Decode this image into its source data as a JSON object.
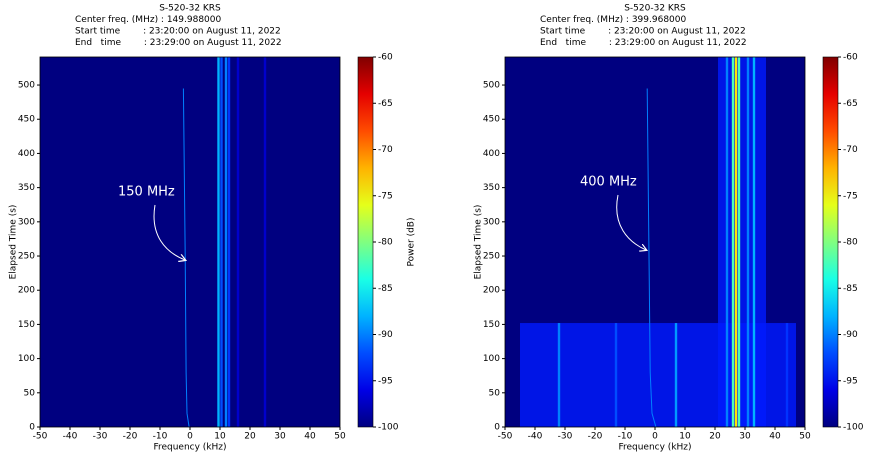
{
  "chart_data": [
    {
      "type": "spectrogram",
      "title": [
        "S-520-32 KRS",
        "Center freq. (MHz) : 149.988000",
        "Start time        : 23:20:00 on August 11, 2022",
        "End   time        : 23:29:00 on August 11, 2022"
      ],
      "xlabel": "Frequency (kHz)",
      "ylabel": "Elapsed Time (s)",
      "xlim": [
        -50,
        50
      ],
      "xticks": [
        -50,
        -40,
        -30,
        -20,
        -10,
        0,
        10,
        20,
        30,
        40,
        50
      ],
      "ylim": [
        0,
        541
      ],
      "yticks": [
        0,
        50,
        100,
        150,
        200,
        250,
        300,
        350,
        400,
        450,
        500
      ],
      "colormap": "jet",
      "clim": [
        -100,
        -60
      ],
      "cticks": [
        -100,
        -95,
        -90,
        -85,
        -80,
        -75,
        -70,
        -65,
        -60
      ],
      "colorbar_label": "Power (dB)",
      "annotation": "150 MHz",
      "regions": [],
      "signals": [
        {
          "frequency": 9.5,
          "power": -88
        },
        {
          "frequency": 10.5,
          "power": -92
        },
        {
          "frequency": 12,
          "power": -90
        },
        {
          "frequency": 13,
          "power": -93
        },
        {
          "frequency": 16,
          "power": -97
        },
        {
          "frequency": 25,
          "power": -97
        }
      ],
      "trace": {
        "x": [
          -0.3,
          -1.0,
          -1.3,
          -1.6,
          -2.2
        ],
        "y": [
          0,
          20,
          80,
          250,
          495
        ],
        "power": -90
      }
    },
    {
      "type": "spectrogram",
      "title": [
        "S-520-32 KRS",
        "Center freq. (MHz) : 399.968000",
        "Start time        : 23:20:00 on August 11, 2022",
        "End   time        : 23:29:00 on August 11, 2022"
      ],
      "xlabel": "Frequency (kHz)",
      "ylabel": "Elapsed Time (s)",
      "xlim": [
        -50,
        50
      ],
      "xticks": [
        -50,
        -40,
        -30,
        -20,
        -10,
        0,
        10,
        20,
        30,
        40,
        50
      ],
      "ylim": [
        0,
        541
      ],
      "yticks": [
        0,
        50,
        100,
        150,
        200,
        250,
        300,
        350,
        400,
        450,
        500
      ],
      "colormap": "jet",
      "clim": [
        -100,
        -60
      ],
      "cticks": [
        -100,
        -95,
        -90,
        -85,
        -80,
        -75,
        -70,
        -65,
        -60
      ],
      "annotation": "400 MHz",
      "regions": [
        {
          "frequency": [
            -45,
            47
          ],
          "time": [
            0,
            152
          ],
          "power": -94
        },
        {
          "frequency": [
            21,
            37
          ],
          "time": [
            0,
            541
          ],
          "power": -94
        }
      ],
      "signals": [
        {
          "frequency": 26,
          "power": -82
        },
        {
          "frequency": 27,
          "power": -74
        },
        {
          "frequency": 28,
          "power": -82
        },
        {
          "frequency": 24,
          "power": -90
        },
        {
          "frequency": 31,
          "power": -90
        },
        {
          "frequency": 33,
          "power": -88
        },
        {
          "frequency": -32,
          "power": -90,
          "time": [
            0,
            152
          ]
        },
        {
          "frequency": -13,
          "power": -92,
          "time": [
            0,
            152
          ]
        },
        {
          "frequency": 7,
          "power": -89,
          "time": [
            0,
            152
          ]
        },
        {
          "frequency": 44,
          "power": -93,
          "time": [
            0,
            152
          ]
        }
      ],
      "trace": {
        "x": [
          0.3,
          -1.0,
          -1.6,
          -2.0,
          -2.6
        ],
        "y": [
          0,
          20,
          80,
          250,
          495
        ],
        "power": -90
      }
    }
  ]
}
